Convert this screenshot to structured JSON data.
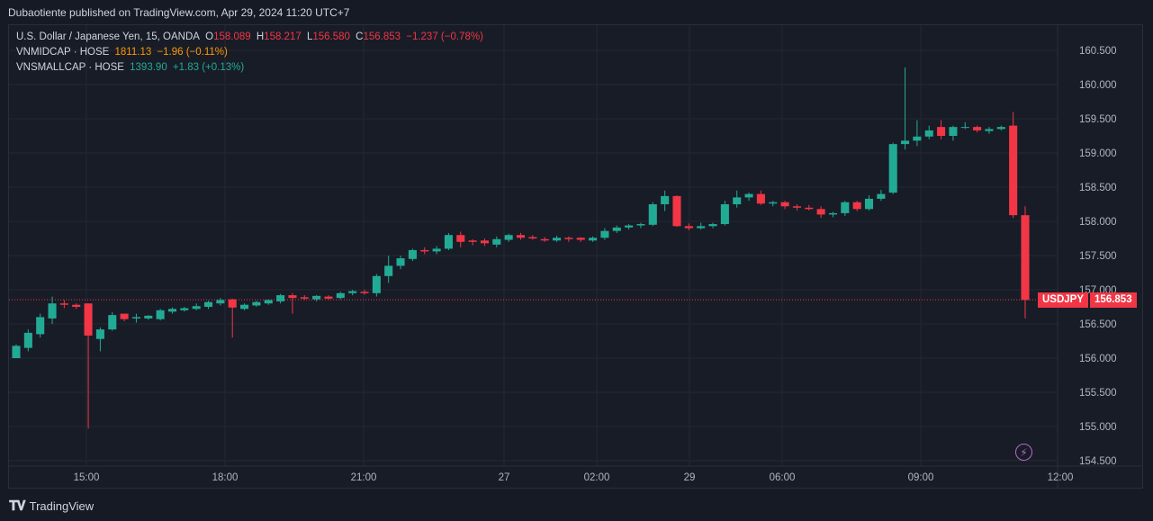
{
  "publisher_line": "Dubaotiente published on TradingView.com, Apr 29, 2024 11:20 UTC+7",
  "legend": {
    "main_symbol": "U.S. Dollar / Japanese Yen, 15, OANDA",
    "o_label": "O",
    "o_value": "158.089",
    "h_label": "H",
    "h_value": "158.217",
    "l_label": "L",
    "l_value": "156.580",
    "c_label": "C",
    "c_value": "156.853",
    "change": "−1.237 (−0.78%)",
    "vnmidcap_name": "VNMIDCAP · HOSE",
    "vnmidcap_value": "1811.13",
    "vnmidcap_change": "−1.96 (−0.11%)",
    "vnsmallcap_name": "VNSMALLCAP · HOSE",
    "vnsmallcap_value": "1393.90",
    "vnsmallcap_change": "+1.83 (+0.13%)"
  },
  "last_price": {
    "symbol": "USDJPY",
    "value": "156.853"
  },
  "footer": {
    "brand": "TradingView",
    "logo_icon": "tradingview-logo-icon"
  },
  "colors": {
    "up": "#22ab94",
    "down": "#f23645",
    "grid": "#232733",
    "text": "#d1d4dc",
    "background": "#181c27"
  },
  "chart_data": {
    "type": "candlestick",
    "symbol": "USDJPY",
    "interval": "15",
    "source": "OANDA",
    "y_ticks": [
      "154.500",
      "155.000",
      "155.500",
      "156.000",
      "156.500",
      "157.000",
      "157.500",
      "158.000",
      "158.500",
      "159.000",
      "159.500",
      "160.000",
      "160.500"
    ],
    "ylim": [
      154.45,
      160.9
    ],
    "x_ticks": [
      "15:00",
      "18:00",
      "21:00",
      "27",
      "02:00",
      "29",
      "06:00",
      "09:00",
      "12:00"
    ],
    "last_price_line": 156.853,
    "candles": [
      [
        156.0,
        156.2,
        156.0,
        156.18
      ],
      [
        156.15,
        156.42,
        156.1,
        156.37
      ],
      [
        156.35,
        156.65,
        156.3,
        156.6
      ],
      [
        156.58,
        156.9,
        156.5,
        156.8
      ],
      [
        156.8,
        156.85,
        156.73,
        156.78
      ],
      [
        156.78,
        156.8,
        156.72,
        156.75
      ],
      [
        156.8,
        156.8,
        154.97,
        156.33
      ],
      [
        156.28,
        156.45,
        156.1,
        156.42
      ],
      [
        156.42,
        156.67,
        156.4,
        156.63
      ],
      [
        156.65,
        156.65,
        156.54,
        156.57
      ],
      [
        156.58,
        156.65,
        156.52,
        156.6
      ],
      [
        156.58,
        156.63,
        156.56,
        156.62
      ],
      [
        156.57,
        156.72,
        156.55,
        156.7
      ],
      [
        156.68,
        156.74,
        156.65,
        156.72
      ],
      [
        156.7,
        156.75,
        156.68,
        156.73
      ],
      [
        156.72,
        156.8,
        156.7,
        156.76
      ],
      [
        156.75,
        156.84,
        156.72,
        156.82
      ],
      [
        156.8,
        156.88,
        156.77,
        156.85
      ],
      [
        156.86,
        156.87,
        156.3,
        156.74
      ],
      [
        156.72,
        156.8,
        156.7,
        156.78
      ],
      [
        156.77,
        156.84,
        156.75,
        156.82
      ],
      [
        156.8,
        156.86,
        156.78,
        156.85
      ],
      [
        156.83,
        156.94,
        156.8,
        156.92
      ],
      [
        156.92,
        156.95,
        156.65,
        156.88
      ],
      [
        156.89,
        156.92,
        156.85,
        156.87
      ],
      [
        156.86,
        156.92,
        156.83,
        156.91
      ],
      [
        156.9,
        156.92,
        156.85,
        156.87
      ],
      [
        156.88,
        156.97,
        156.86,
        156.95
      ],
      [
        156.95,
        157.0,
        156.92,
        156.98
      ],
      [
        156.97,
        157.0,
        156.93,
        156.95
      ],
      [
        156.95,
        157.23,
        156.9,
        157.2
      ],
      [
        157.2,
        157.5,
        157.1,
        157.35
      ],
      [
        157.35,
        157.5,
        157.3,
        157.46
      ],
      [
        157.45,
        157.6,
        157.42,
        157.58
      ],
      [
        157.58,
        157.62,
        157.52,
        157.56
      ],
      [
        157.56,
        157.64,
        157.52,
        157.6
      ],
      [
        157.6,
        157.83,
        157.58,
        157.8
      ],
      [
        157.8,
        157.85,
        157.62,
        157.7
      ],
      [
        157.72,
        157.74,
        157.65,
        157.7
      ],
      [
        157.72,
        157.75,
        157.64,
        157.68
      ],
      [
        157.66,
        157.78,
        157.62,
        157.74
      ],
      [
        157.73,
        157.82,
        157.7,
        157.8
      ],
      [
        157.8,
        157.83,
        157.73,
        157.76
      ],
      [
        157.77,
        157.8,
        157.73,
        157.75
      ],
      [
        157.74,
        157.77,
        157.7,
        157.72
      ],
      [
        157.72,
        157.79,
        157.7,
        157.76
      ],
      [
        157.76,
        157.78,
        157.7,
        157.74
      ],
      [
        157.76,
        157.77,
        157.7,
        157.73
      ],
      [
        157.72,
        157.78,
        157.7,
        157.76
      ],
      [
        157.76,
        157.9,
        157.73,
        157.86
      ],
      [
        157.86,
        157.94,
        157.83,
        157.91
      ],
      [
        157.91,
        157.96,
        157.88,
        157.94
      ],
      [
        157.94,
        157.98,
        157.9,
        157.96
      ],
      [
        157.95,
        158.28,
        157.93,
        158.25
      ],
      [
        158.25,
        158.45,
        158.15,
        158.37
      ],
      [
        158.37,
        158.38,
        157.92,
        157.93
      ],
      [
        157.93,
        157.97,
        157.87,
        157.9
      ],
      [
        157.9,
        157.98,
        157.88,
        157.93
      ],
      [
        157.93,
        157.98,
        157.9,
        157.96
      ],
      [
        157.96,
        158.3,
        157.94,
        158.25
      ],
      [
        158.25,
        158.45,
        158.2,
        158.35
      ],
      [
        158.35,
        158.42,
        158.3,
        158.4
      ],
      [
        158.4,
        158.45,
        158.24,
        158.26
      ],
      [
        158.26,
        158.3,
        158.22,
        158.28
      ],
      [
        158.28,
        158.3,
        158.18,
        158.22
      ],
      [
        158.22,
        158.25,
        158.16,
        158.2
      ],
      [
        158.2,
        158.24,
        158.16,
        158.18
      ],
      [
        158.18,
        158.22,
        158.05,
        158.1
      ],
      [
        158.1,
        158.14,
        158.06,
        158.12
      ],
      [
        158.12,
        158.3,
        158.08,
        158.28
      ],
      [
        158.28,
        158.3,
        158.15,
        158.18
      ],
      [
        158.18,
        158.38,
        158.16,
        158.33
      ],
      [
        158.33,
        158.46,
        158.3,
        158.4
      ],
      [
        158.42,
        159.15,
        158.4,
        159.13
      ],
      [
        159.13,
        160.25,
        159.05,
        159.18
      ],
      [
        159.18,
        159.48,
        159.1,
        159.24
      ],
      [
        159.24,
        159.4,
        159.2,
        159.33
      ],
      [
        159.38,
        159.48,
        159.2,
        159.25
      ],
      [
        159.25,
        159.4,
        159.18,
        159.38
      ],
      [
        159.38,
        159.45,
        159.35,
        159.38
      ],
      [
        159.38,
        159.4,
        159.3,
        159.33
      ],
      [
        159.32,
        159.38,
        159.28,
        159.35
      ],
      [
        159.35,
        159.4,
        159.33,
        159.38
      ],
      [
        159.4,
        159.6,
        158.05,
        158.09
      ],
      [
        158.09,
        158.22,
        156.58,
        156.85
      ]
    ]
  }
}
